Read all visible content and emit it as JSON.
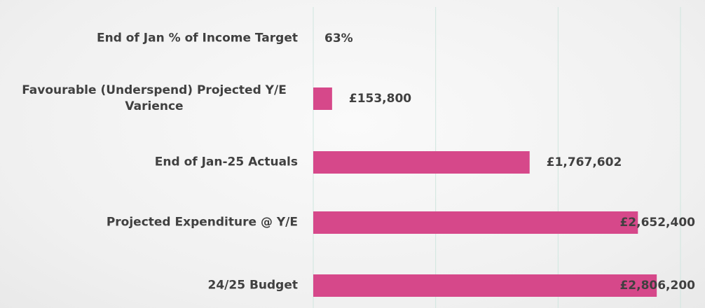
{
  "chart_data": {
    "type": "bar",
    "orientation": "horizontal",
    "categories": [
      "End of Jan % of Income Target",
      "Favourable (Underspend) Projected Y/E Varience",
      "End of Jan-25 Actuals ",
      "Projected Expenditure @ Y/E",
      "24/25 Budget"
    ],
    "values": [
      63,
      153800,
      1767602,
      2652400,
      2806200
    ],
    "value_labels": [
      "63%",
      "£153,800",
      "£1,767,602",
      "£2,652,400",
      "£2,806,200"
    ],
    "color": "#d6488a",
    "xlim": [
      0,
      3000000
    ],
    "gridlines": [
      0,
      1000000,
      2000000,
      3000000
    ],
    "grid_color": "#cfe6df"
  }
}
